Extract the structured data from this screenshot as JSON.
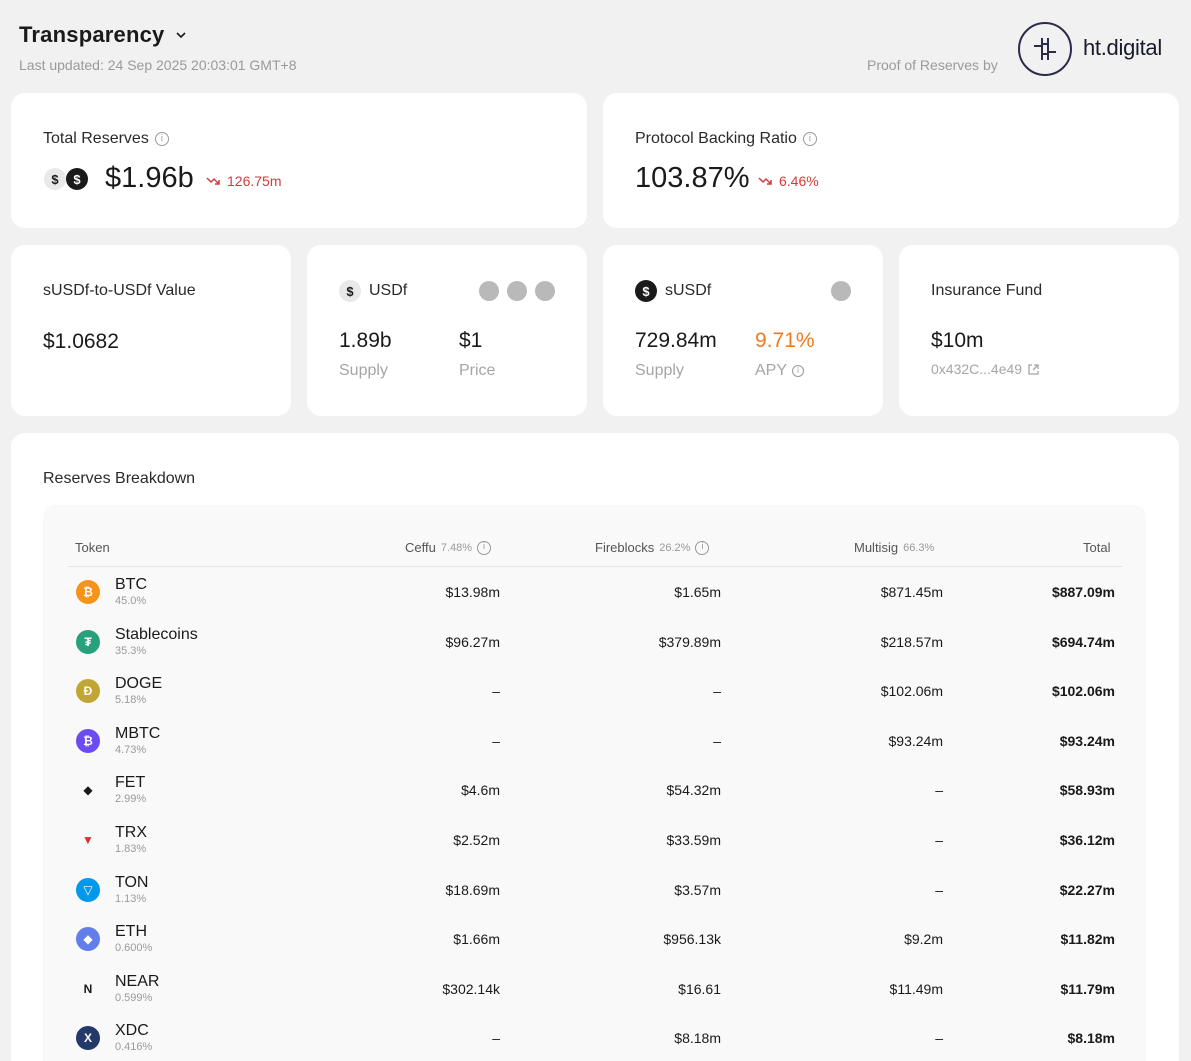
{
  "header": {
    "title": "Transparency",
    "last_updated": "Last updated: 24 Sep 2025 20:03:01 GMT+8",
    "proof_label": "Proof of Reserves by",
    "partner_name": "ht.digital"
  },
  "total_reserves": {
    "label": "Total Reserves",
    "value": "$1.96b",
    "change": "126.75m"
  },
  "backing_ratio": {
    "label": "Protocol Backing Ratio",
    "value": "103.87%",
    "change": "6.46%"
  },
  "susdf_value": {
    "label": "sUSDf-to-USDf Value",
    "value": "$1.0682"
  },
  "usdf": {
    "label": "USDf",
    "supply_value": "1.89b",
    "supply_label": "Supply",
    "price_value": "$1",
    "price_label": "Price"
  },
  "susdf": {
    "label": "sUSDf",
    "supply_value": "729.84m",
    "supply_label": "Supply",
    "apy_value": "9.71%",
    "apy_label": "APY"
  },
  "insurance": {
    "label": "Insurance Fund",
    "value": "$10m",
    "address": "0x432C...4e49"
  },
  "breakdown": {
    "title": "Reserves Breakdown",
    "columns": {
      "token": "Token",
      "ceffu": "Ceffu",
      "ceffu_pct": "7.48%",
      "fireblocks": "Fireblocks",
      "fireblocks_pct": "26.2%",
      "multisig": "Multisig",
      "multisig_pct": "66.3%",
      "total": "Total"
    },
    "rows": [
      {
        "name": "BTC",
        "pct": "45.0%",
        "ceffu": "$13.98m",
        "fireblocks": "$1.65m",
        "multisig": "$871.45m",
        "total": "$887.09m",
        "icon": "btc-icon",
        "color": "#f7931a",
        "glyph": "₿"
      },
      {
        "name": "Stablecoins",
        "pct": "35.3%",
        "ceffu": "$96.27m",
        "fireblocks": "$379.89m",
        "multisig": "$218.57m",
        "total": "$694.74m",
        "icon": "tether-icon",
        "color": "#26a17b",
        "glyph": "₮"
      },
      {
        "name": "DOGE",
        "pct": "5.18%",
        "ceffu": "–",
        "fireblocks": "–",
        "multisig": "$102.06m",
        "total": "$102.06m",
        "icon": "doge-icon",
        "color": "#c2a633",
        "glyph": "Ð"
      },
      {
        "name": "MBTC",
        "pct": "4.73%",
        "ceffu": "–",
        "fireblocks": "–",
        "multisig": "$93.24m",
        "total": "$93.24m",
        "icon": "mbtc-icon",
        "color": "#6c4bf1",
        "glyph": "₿"
      },
      {
        "name": "FET",
        "pct": "2.99%",
        "ceffu": "$4.6m",
        "fireblocks": "$54.32m",
        "multisig": "–",
        "total": "$58.93m",
        "icon": "fet-icon",
        "color": "#ffffff",
        "glyph": "◆"
      },
      {
        "name": "TRX",
        "pct": "1.83%",
        "ceffu": "$2.52m",
        "fireblocks": "$33.59m",
        "multisig": "–",
        "total": "$36.12m",
        "icon": "tron-icon",
        "color": "#ffffff",
        "glyph": "▼"
      },
      {
        "name": "TON",
        "pct": "1.13%",
        "ceffu": "$18.69m",
        "fireblocks": "$3.57m",
        "multisig": "–",
        "total": "$22.27m",
        "icon": "ton-icon",
        "color": "#0098ea",
        "glyph": "▽"
      },
      {
        "name": "ETH",
        "pct": "0.600%",
        "ceffu": "$1.66m",
        "fireblocks": "$956.13k",
        "multisig": "$9.2m",
        "total": "$11.82m",
        "icon": "eth-icon",
        "color": "#627eea",
        "glyph": "◆"
      },
      {
        "name": "NEAR",
        "pct": "0.599%",
        "ceffu": "$302.14k",
        "fireblocks": "$16.61",
        "multisig": "$11.49m",
        "total": "$11.79m",
        "icon": "near-icon",
        "color": "#ffffff",
        "glyph": "N"
      },
      {
        "name": "XDC",
        "pct": "0.416%",
        "ceffu": "–",
        "fireblocks": "$8.18m",
        "multisig": "–",
        "total": "$8.18m",
        "icon": "xdc-icon",
        "color": "#24386a",
        "glyph": "X"
      }
    ]
  }
}
